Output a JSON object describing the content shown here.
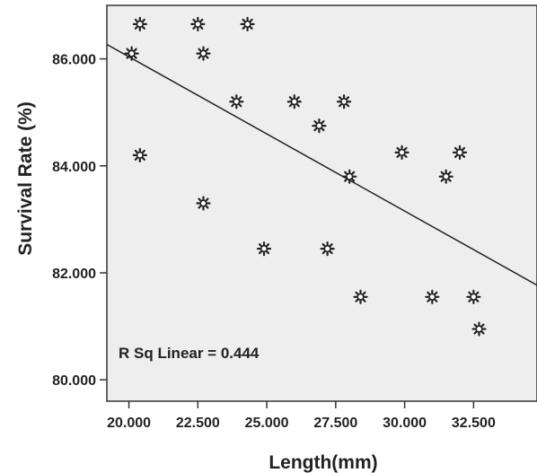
{
  "chart_data": {
    "type": "scatter",
    "xlabel": "Length(mm)",
    "ylabel": "Survival Rate (%)",
    "xlim": [
      19.2,
      34.8
    ],
    "ylim": [
      79.6,
      87.0
    ],
    "x_ticks": [
      20.0,
      22.5,
      25.0,
      27.5,
      30.0,
      32.5
    ],
    "x_tick_labels": [
      "20.000",
      "22.500",
      "25.000",
      "27.500",
      "30.000",
      "32.500"
    ],
    "y_ticks": [
      80.0,
      82.0,
      84.0,
      86.0
    ],
    "y_tick_labels": [
      "80.000",
      "82.000",
      "84.000",
      "86.000"
    ],
    "grid": false,
    "series": [
      {
        "points": [
          {
            "x": 20.1,
            "y": 86.1
          },
          {
            "x": 20.4,
            "y": 86.65
          },
          {
            "x": 20.4,
            "y": 84.2
          },
          {
            "x": 22.5,
            "y": 86.65
          },
          {
            "x": 22.7,
            "y": 86.1
          },
          {
            "x": 22.7,
            "y": 83.3
          },
          {
            "x": 23.9,
            "y": 85.2
          },
          {
            "x": 24.3,
            "y": 86.65
          },
          {
            "x": 24.9,
            "y": 82.45
          },
          {
            "x": 26.0,
            "y": 85.2
          },
          {
            "x": 26.9,
            "y": 84.75
          },
          {
            "x": 27.2,
            "y": 82.45
          },
          {
            "x": 27.8,
            "y": 85.2
          },
          {
            "x": 28.0,
            "y": 83.8
          },
          {
            "x": 28.4,
            "y": 81.55
          },
          {
            "x": 29.9,
            "y": 84.25
          },
          {
            "x": 31.0,
            "y": 81.55
          },
          {
            "x": 31.5,
            "y": 83.8
          },
          {
            "x": 32.0,
            "y": 84.25
          },
          {
            "x": 32.5,
            "y": 81.55
          },
          {
            "x": 32.7,
            "y": 80.95
          }
        ]
      }
    ],
    "fit_line": {
      "x": [
        19.2,
        34.8
      ],
      "y": [
        86.27,
        81.77
      ]
    },
    "annotation": "R Sq Linear = 0.444",
    "plot_background": "#eeeeee",
    "point_color": "#222222",
    "line_color": "#222222"
  }
}
